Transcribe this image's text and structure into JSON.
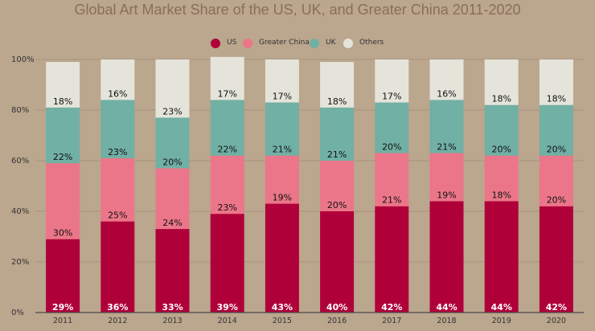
{
  "chart_data": {
    "type": "bar",
    "stacked": true,
    "title": "Global Art Market Share of the US, UK, and Greater China 2011-2020",
    "xlabel": "",
    "ylabel": "",
    "ylim": [
      0,
      100
    ],
    "y_ticks": [
      "0%",
      "20%",
      "40%",
      "60%",
      "80%",
      "100%"
    ],
    "y_tick_values": [
      0,
      20,
      40,
      60,
      80,
      100
    ],
    "legend_position": "top-center",
    "categories": [
      "2011",
      "2012",
      "2013",
      "2014",
      "2015",
      "2016",
      "2017",
      "2018",
      "2019",
      "2020"
    ],
    "series": [
      {
        "name": "US",
        "color": "#b0003a",
        "label_color": "#ffffff",
        "values": [
          29,
          36,
          33,
          39,
          43,
          40,
          42,
          44,
          44,
          42
        ],
        "labels": [
          "29%",
          "36%",
          "33%",
          "39%",
          "43%",
          "40%",
          "42%",
          "44%",
          "44%",
          "42%"
        ]
      },
      {
        "name": "Greater China",
        "color": "#ec7689",
        "label_color": "#111111",
        "values": [
          30,
          25,
          24,
          23,
          19,
          20,
          21,
          19,
          18,
          20
        ],
        "labels": [
          "30%",
          "25%",
          "24%",
          "23%",
          "19%",
          "20%",
          "21%",
          "19%",
          "18%",
          "20%"
        ]
      },
      {
        "name": "UK",
        "color": "#71b0a4",
        "label_color": "#111111",
        "values": [
          22,
          23,
          20,
          22,
          21,
          21,
          20,
          21,
          20,
          20
        ],
        "labels": [
          "22%",
          "23%",
          "20%",
          "22%",
          "21%",
          "21%",
          "20%",
          "21%",
          "20%",
          "20%"
        ]
      },
      {
        "name": "Others",
        "color": "#e4e4db",
        "label_color": "#111111",
        "values": [
          18,
          16,
          23,
          17,
          17,
          18,
          17,
          16,
          18,
          18
        ],
        "labels": [
          "18%",
          "16%",
          "23%",
          "17%",
          "17%",
          "18%",
          "17%",
          "16%",
          "18%",
          "18%"
        ]
      }
    ]
  },
  "colors": {
    "background": "#bba68e",
    "title": "#8a6e58",
    "axis_text": "#333333",
    "grid": "#a8937c",
    "baseline": "#4a4a4a"
  }
}
